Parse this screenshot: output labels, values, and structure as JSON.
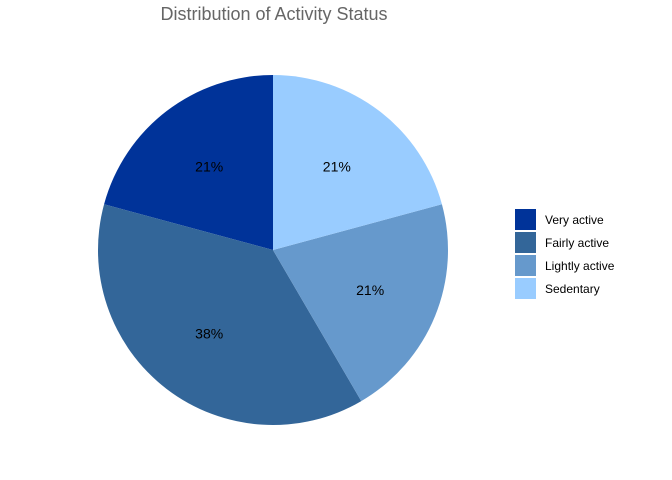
{
  "chart_data": {
    "type": "pie",
    "title": "Distribution of Activity Status",
    "slices": [
      {
        "label": "Very active",
        "value": 21,
        "display": "21%",
        "color": "#003399"
      },
      {
        "label": "Fairly active",
        "value": 38,
        "display": "38%",
        "color": "#336699"
      },
      {
        "label": "Lightly active",
        "value": 21,
        "display": "21%",
        "color": "#6699cc"
      },
      {
        "label": "Sedentary",
        "value": 21,
        "display": "21%",
        "color": "#99ccff"
      }
    ],
    "legend_placement": "right"
  }
}
